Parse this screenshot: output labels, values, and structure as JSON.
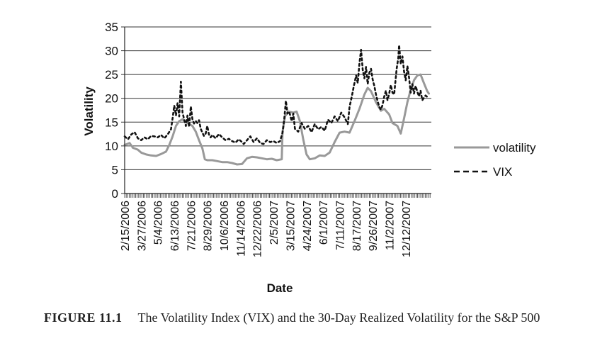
{
  "figure": {
    "label": "FIGURE 11.1",
    "caption": "The Volatility Index (VIX) and the 30-Day Realized Volatility for the S&P 500"
  },
  "chart_data": {
    "type": "line",
    "title": "",
    "xlabel": "Date",
    "ylabel": "Volatility",
    "ylim": [
      0,
      35
    ],
    "yticks": [
      0,
      5,
      10,
      15,
      20,
      25,
      30,
      35
    ],
    "grid": "horizontal",
    "legend_position": "right",
    "categories": [
      "2/15/2006",
      "3/27/2006",
      "5/4/2006",
      "6/13/2006",
      "7/21/2006",
      "8/29/2006",
      "10/6/2006",
      "11/14/2006",
      "12/22/2006",
      "2/5/2007",
      "3/15/2007",
      "4/24/2007",
      "6/1/2007",
      "7/11/2007",
      "8/17/2007",
      "9/26/2007",
      "11/2/2007",
      "12/12/2007"
    ],
    "series": [
      {
        "name": "volatility",
        "style": "solid",
        "color": "#999999",
        "values": [
          [
            0,
            10.2
          ],
          [
            0.3,
            10.6
          ],
          [
            0.5,
            9.6
          ],
          [
            0.8,
            9.2
          ],
          [
            1.0,
            8.6
          ],
          [
            1.3,
            8.2
          ],
          [
            1.6,
            8.0
          ],
          [
            1.9,
            7.9
          ],
          [
            2.2,
            8.3
          ],
          [
            2.5,
            8.8
          ],
          [
            2.7,
            10.2
          ],
          [
            2.9,
            12.0
          ],
          [
            3.1,
            14.2
          ],
          [
            3.3,
            15.2
          ],
          [
            3.5,
            15.6
          ],
          [
            3.7,
            15.0
          ],
          [
            3.9,
            14.6
          ],
          [
            4.1,
            14.2
          ],
          [
            4.3,
            13.0
          ],
          [
            4.5,
            11.2
          ],
          [
            4.7,
            9.5
          ],
          [
            4.85,
            7.2
          ],
          [
            5.0,
            7.0
          ],
          [
            5.3,
            7.0
          ],
          [
            5.6,
            6.8
          ],
          [
            5.9,
            6.6
          ],
          [
            6.2,
            6.6
          ],
          [
            6.5,
            6.4
          ],
          [
            6.8,
            6.1
          ],
          [
            7.1,
            6.2
          ],
          [
            7.4,
            7.4
          ],
          [
            7.7,
            7.7
          ],
          [
            8.0,
            7.6
          ],
          [
            8.3,
            7.4
          ],
          [
            8.6,
            7.2
          ],
          [
            8.9,
            7.3
          ],
          [
            9.2,
            7.0
          ],
          [
            9.5,
            7.2
          ],
          [
            9.55,
            13.0
          ],
          [
            9.7,
            16.2
          ],
          [
            9.9,
            17.2
          ],
          [
            10.2,
            17.0
          ],
          [
            10.4,
            17.2
          ],
          [
            10.6,
            15.2
          ],
          [
            10.8,
            11.4
          ],
          [
            11.0,
            8.2
          ],
          [
            11.2,
            7.2
          ],
          [
            11.5,
            7.4
          ],
          [
            11.8,
            8.0
          ],
          [
            12.1,
            7.9
          ],
          [
            12.4,
            8.6
          ],
          [
            12.7,
            10.8
          ],
          [
            13.0,
            12.8
          ],
          [
            13.3,
            13.0
          ],
          [
            13.6,
            12.8
          ],
          [
            13.9,
            15.2
          ],
          [
            14.2,
            17.8
          ],
          [
            14.5,
            20.8
          ],
          [
            14.7,
            22.2
          ],
          [
            14.9,
            21.5
          ],
          [
            15.2,
            19.2
          ],
          [
            15.5,
            17.4
          ],
          [
            15.7,
            17.8
          ],
          [
            16.0,
            16.6
          ],
          [
            16.2,
            14.8
          ],
          [
            16.5,
            14.2
          ],
          [
            16.7,
            12.6
          ],
          [
            16.9,
            15.8
          ],
          [
            17.1,
            19.2
          ],
          [
            17.3,
            21.8
          ],
          [
            17.5,
            23.8
          ],
          [
            17.7,
            24.8
          ],
          [
            17.9,
            25.0
          ],
          [
            18.1,
            23.2
          ],
          [
            18.3,
            21.5
          ],
          [
            18.4,
            21.0
          ]
        ]
      },
      {
        "name": "VIX",
        "style": "dashed",
        "color": "#111111",
        "values": [
          [
            0,
            12.0
          ],
          [
            0.2,
            11.4
          ],
          [
            0.4,
            12.4
          ],
          [
            0.6,
            12.9
          ],
          [
            0.8,
            11.6
          ],
          [
            1.0,
            11.2
          ],
          [
            1.2,
            11.8
          ],
          [
            1.4,
            11.4
          ],
          [
            1.6,
            12.1
          ],
          [
            1.8,
            12.0
          ],
          [
            2.0,
            11.8
          ],
          [
            2.2,
            12.3
          ],
          [
            2.4,
            11.6
          ],
          [
            2.6,
            12.4
          ],
          [
            2.8,
            13.5
          ],
          [
            2.9,
            15.8
          ],
          [
            3.0,
            18.5
          ],
          [
            3.1,
            16.4
          ],
          [
            3.2,
            19.0
          ],
          [
            3.3,
            16.2
          ],
          [
            3.4,
            23.5
          ],
          [
            3.5,
            17.0
          ],
          [
            3.6,
            15.6
          ],
          [
            3.7,
            14.2
          ],
          [
            3.8,
            16.4
          ],
          [
            3.9,
            14.0
          ],
          [
            4.0,
            18.3
          ],
          [
            4.1,
            15.6
          ],
          [
            4.2,
            14.7
          ],
          [
            4.3,
            15.2
          ],
          [
            4.4,
            14.8
          ],
          [
            4.5,
            15.4
          ],
          [
            4.6,
            13.6
          ],
          [
            4.7,
            12.8
          ],
          [
            4.8,
            12.1
          ],
          [
            4.9,
            12.6
          ],
          [
            5.0,
            14.2
          ],
          [
            5.1,
            12.4
          ],
          [
            5.2,
            11.8
          ],
          [
            5.3,
            12.3
          ],
          [
            5.5,
            11.6
          ],
          [
            5.7,
            12.5
          ],
          [
            5.9,
            11.8
          ],
          [
            6.1,
            11.2
          ],
          [
            6.3,
            11.5
          ],
          [
            6.5,
            11.0
          ],
          [
            6.7,
            10.7
          ],
          [
            6.9,
            11.4
          ],
          [
            7.1,
            10.8
          ],
          [
            7.2,
            10.4
          ],
          [
            7.4,
            11.2
          ],
          [
            7.6,
            12.0
          ],
          [
            7.8,
            10.8
          ],
          [
            8.0,
            11.6
          ],
          [
            8.2,
            10.6
          ],
          [
            8.4,
            10.4
          ],
          [
            8.6,
            11.2
          ],
          [
            8.8,
            10.8
          ],
          [
            9.0,
            11.0
          ],
          [
            9.2,
            10.6
          ],
          [
            9.4,
            11.0
          ],
          [
            9.55,
            12.8
          ],
          [
            9.65,
            15.6
          ],
          [
            9.75,
            19.5
          ],
          [
            9.85,
            16.8
          ],
          [
            9.95,
            17.2
          ],
          [
            10.1,
            15.2
          ],
          [
            10.2,
            16.8
          ],
          [
            10.3,
            13.6
          ],
          [
            10.5,
            13.0
          ],
          [
            10.7,
            14.8
          ],
          [
            10.9,
            13.6
          ],
          [
            11.1,
            14.2
          ],
          [
            11.3,
            12.9
          ],
          [
            11.5,
            14.6
          ],
          [
            11.7,
            13.5
          ],
          [
            11.9,
            14.0
          ],
          [
            12.1,
            13.2
          ],
          [
            12.3,
            15.5
          ],
          [
            12.5,
            14.8
          ],
          [
            12.7,
            16.2
          ],
          [
            12.9,
            15.2
          ],
          [
            13.1,
            17.0
          ],
          [
            13.3,
            16.0
          ],
          [
            13.5,
            14.6
          ],
          [
            13.6,
            18.2
          ],
          [
            13.75,
            20.6
          ],
          [
            13.85,
            22.4
          ],
          [
            14.0,
            24.8
          ],
          [
            14.1,
            23.2
          ],
          [
            14.2,
            27.4
          ],
          [
            14.3,
            30.2
          ],
          [
            14.4,
            26.0
          ],
          [
            14.5,
            24.2
          ],
          [
            14.6,
            26.6
          ],
          [
            14.7,
            23.0
          ],
          [
            14.8,
            25.4
          ],
          [
            14.9,
            26.2
          ],
          [
            15.0,
            24.0
          ],
          [
            15.1,
            22.6
          ],
          [
            15.2,
            20.8
          ],
          [
            15.3,
            19.4
          ],
          [
            15.4,
            18.2
          ],
          [
            15.5,
            17.6
          ],
          [
            15.6,
            18.6
          ],
          [
            15.7,
            20.4
          ],
          [
            15.8,
            21.6
          ],
          [
            15.9,
            19.6
          ],
          [
            16.0,
            21.0
          ],
          [
            16.1,
            22.8
          ],
          [
            16.2,
            21.2
          ],
          [
            16.3,
            20.8
          ],
          [
            16.45,
            26.2
          ],
          [
            16.55,
            28.4
          ],
          [
            16.6,
            31.2
          ],
          [
            16.7,
            27.2
          ],
          [
            16.8,
            28.8
          ],
          [
            16.9,
            25.6
          ],
          [
            17.0,
            23.8
          ],
          [
            17.1,
            26.8
          ],
          [
            17.2,
            24.4
          ],
          [
            17.3,
            21.2
          ],
          [
            17.4,
            23.0
          ],
          [
            17.5,
            21.0
          ],
          [
            17.6,
            22.6
          ],
          [
            17.7,
            21.4
          ],
          [
            17.8,
            20.4
          ],
          [
            17.9,
            21.6
          ],
          [
            18.0,
            19.6
          ],
          [
            18.2,
            20.6
          ],
          [
            18.4,
            20.0
          ]
        ]
      }
    ]
  }
}
